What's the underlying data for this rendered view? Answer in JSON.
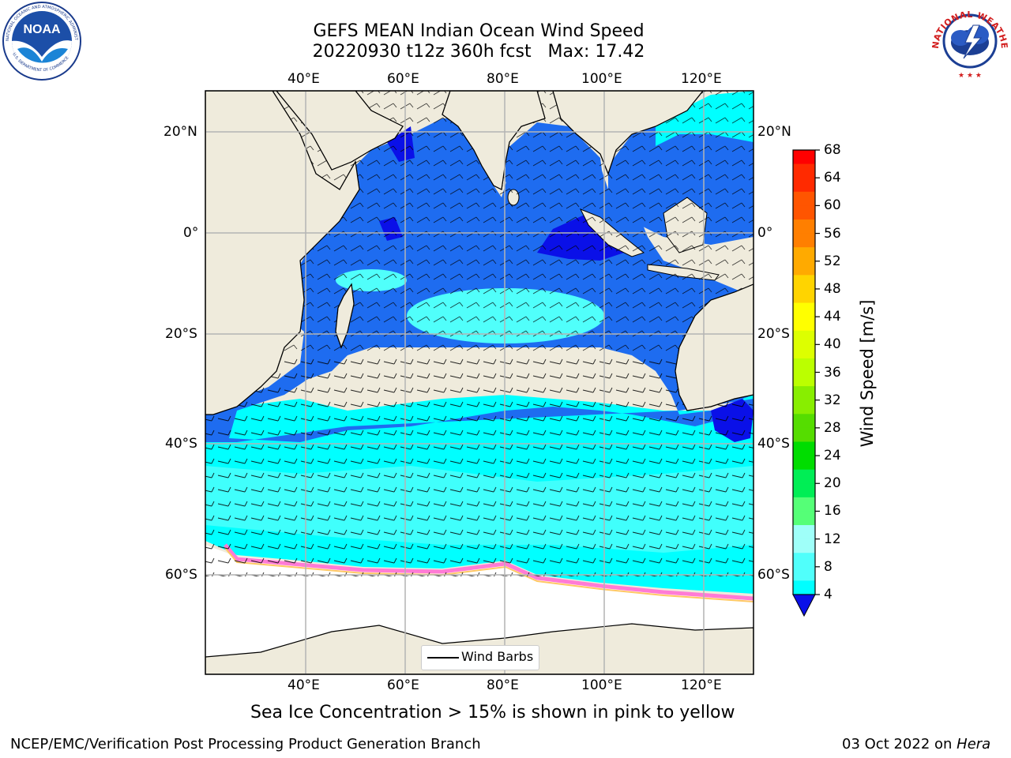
{
  "header": {
    "title_line1": "GEFS MEAN Indian Ocean Wind Speed",
    "title_line2": "20220930 t12z 360h fcst   Max: 17.42"
  },
  "logos": {
    "left": {
      "name": "noaa-logo",
      "text": "NOAA",
      "ring_text": "NATIONAL OCEANIC AND ATMOSPHERIC ADMINISTRATION · U.S. DEPARTMENT OF COMMERCE"
    },
    "right": {
      "name": "nws-logo",
      "ring_text": "NATIONAL WEATHER SERVICE"
    }
  },
  "map": {
    "lon_range": [
      20,
      130
    ],
    "lat_range": [
      -74,
      28
    ],
    "lon_ticks": [
      "40°E",
      "60°E",
      "80°E",
      "100°E",
      "120°E"
    ],
    "lat_ticks": [
      "20°N",
      "0°",
      "20°S",
      "40°S",
      "60°S"
    ],
    "legend_label": "Wind Barbs",
    "colors": {
      "land": "#efebdc",
      "low_wind": "#1e6cf0",
      "calm": "#0a10e8",
      "moderate": "#00ffff",
      "strong": "#50fffb",
      "ice": "#ff7bd5",
      "grid": "#b4b4b4"
    }
  },
  "colorbar": {
    "label": "Wind Speed [m/s]",
    "ticks": [
      "68",
      "64",
      "60",
      "56",
      "52",
      "48",
      "44",
      "40",
      "36",
      "32",
      "28",
      "24",
      "20",
      "16",
      "12",
      "8",
      "4"
    ],
    "colors": [
      "#ff0000",
      "#ff2a00",
      "#ff5500",
      "#ff7f00",
      "#ffaa00",
      "#ffd400",
      "#ffff00",
      "#ddff00",
      "#bbff00",
      "#88ee00",
      "#55dd00",
      "#00dd00",
      "#00ee55",
      "#55ff77",
      "#9ffff9",
      "#50fffb",
      "#00ffff",
      "#1e6cf0"
    ],
    "under_color": "#0a10e8"
  },
  "caption": "Sea Ice Concentration > 15% is shown in pink to yellow",
  "footer": {
    "left": "NCEP/EMC/Verification Post Processing Product Generation Branch",
    "date": "03 Oct 2022 on ",
    "machine": "Hera"
  }
}
